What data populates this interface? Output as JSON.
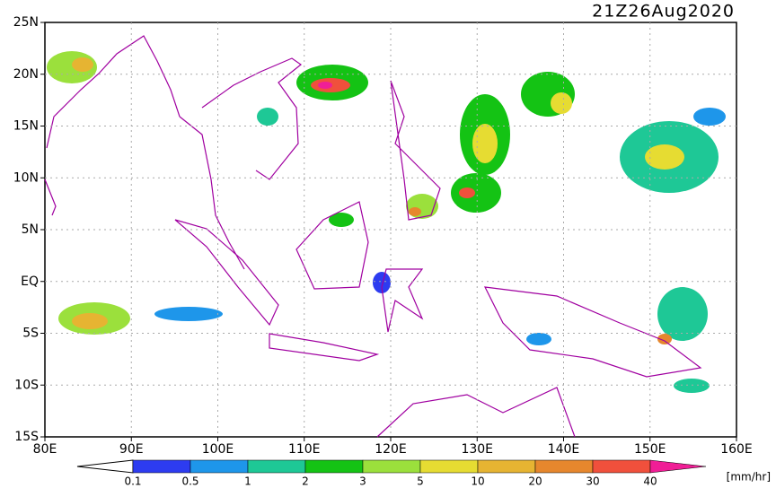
{
  "title": "21Z26Aug2020",
  "map": {
    "lon_labels": [
      "80E",
      "90E",
      "100E",
      "110E",
      "120E",
      "130E",
      "140E",
      "150E",
      "160E"
    ],
    "lat_labels": [
      "25N",
      "20N",
      "15N",
      "10N",
      "5N",
      "EQ",
      "5S",
      "10S",
      "15S"
    ]
  },
  "colorbar": {
    "labels": [
      "0.1",
      "0.5",
      "1",
      "2",
      "3",
      "5",
      "10",
      "20",
      "30",
      "40"
    ],
    "colors": [
      "#ffffff",
      "#2d3cf0",
      "#1e96ea",
      "#1ec896",
      "#14c314",
      "#9be03c",
      "#e6dc32",
      "#e6b432",
      "#e6872d",
      "#f0503c",
      "#f01e96"
    ],
    "unit": "[mm/hr]"
  }
}
